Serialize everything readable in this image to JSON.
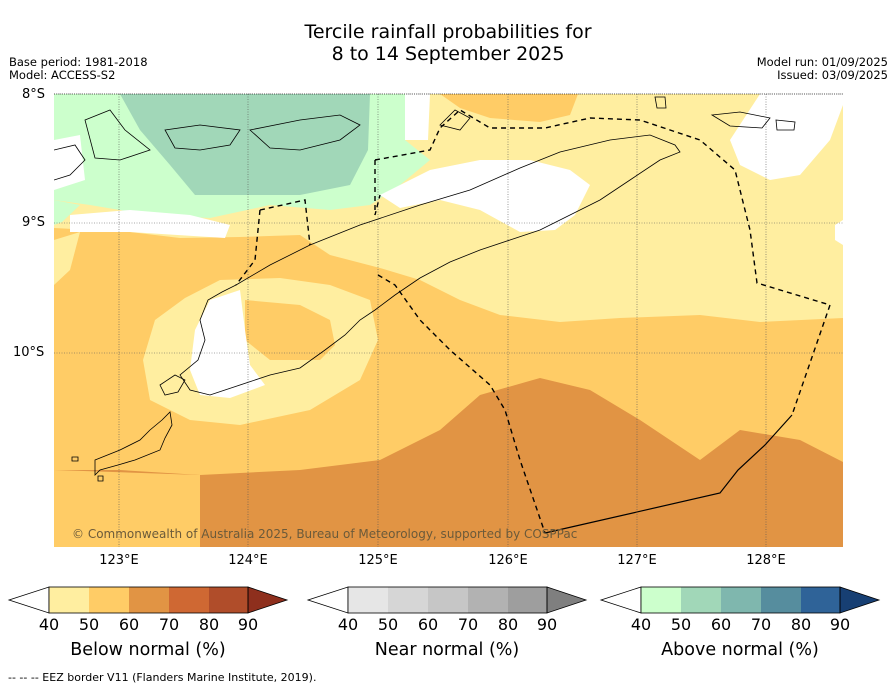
{
  "header": {
    "title_line1": "Tercile rainfall probabilities for",
    "title_line2": "8 to 14 September 2025",
    "base_period": "Base period: 1981-2018",
    "model": "Model: ACCESS-S2",
    "model_run": "Model run: 01/09/2025",
    "issued": "Issued: 03/09/2025"
  },
  "map": {
    "lat_labels": [
      "8°S",
      "9°S",
      "10°S"
    ],
    "lon_labels": [
      "123°E",
      "124°E",
      "125°E",
      "126°E",
      "127°E",
      "128°E"
    ],
    "copyright": "© Commonwealth of Australia 2025, Bureau of Meteorology, supported by COSPPac"
  },
  "colorbars": [
    {
      "title": "Below normal (%)",
      "ticks": [
        "40",
        "50",
        "60",
        "70",
        "80",
        "90"
      ],
      "colors": [
        "#ffffff",
        "#ffeea0",
        "#ffcc66",
        "#e19444",
        "#cf6833",
        "#b04d2a",
        "#8e2f1d"
      ]
    },
    {
      "title": "Near normal (%)",
      "ticks": [
        "40",
        "50",
        "60",
        "70",
        "80",
        "90"
      ],
      "colors": [
        "#ffffff",
        "#e6e6e6",
        "#d6d6d6",
        "#c6c6c6",
        "#b2b2b2",
        "#9e9e9e",
        "#7f7f7f"
      ]
    },
    {
      "title": "Above normal (%)",
      "ticks": [
        "40",
        "50",
        "60",
        "70",
        "80",
        "90"
      ],
      "colors": [
        "#ffffff",
        "#ccffcc",
        "#a1d7b8",
        "#7fb7ae",
        "#568d9e",
        "#2f6398",
        "#173f73"
      ]
    }
  ],
  "footer": "--  --  -- EEZ border V11 (Flanders Marine Institute, 2019)."
}
